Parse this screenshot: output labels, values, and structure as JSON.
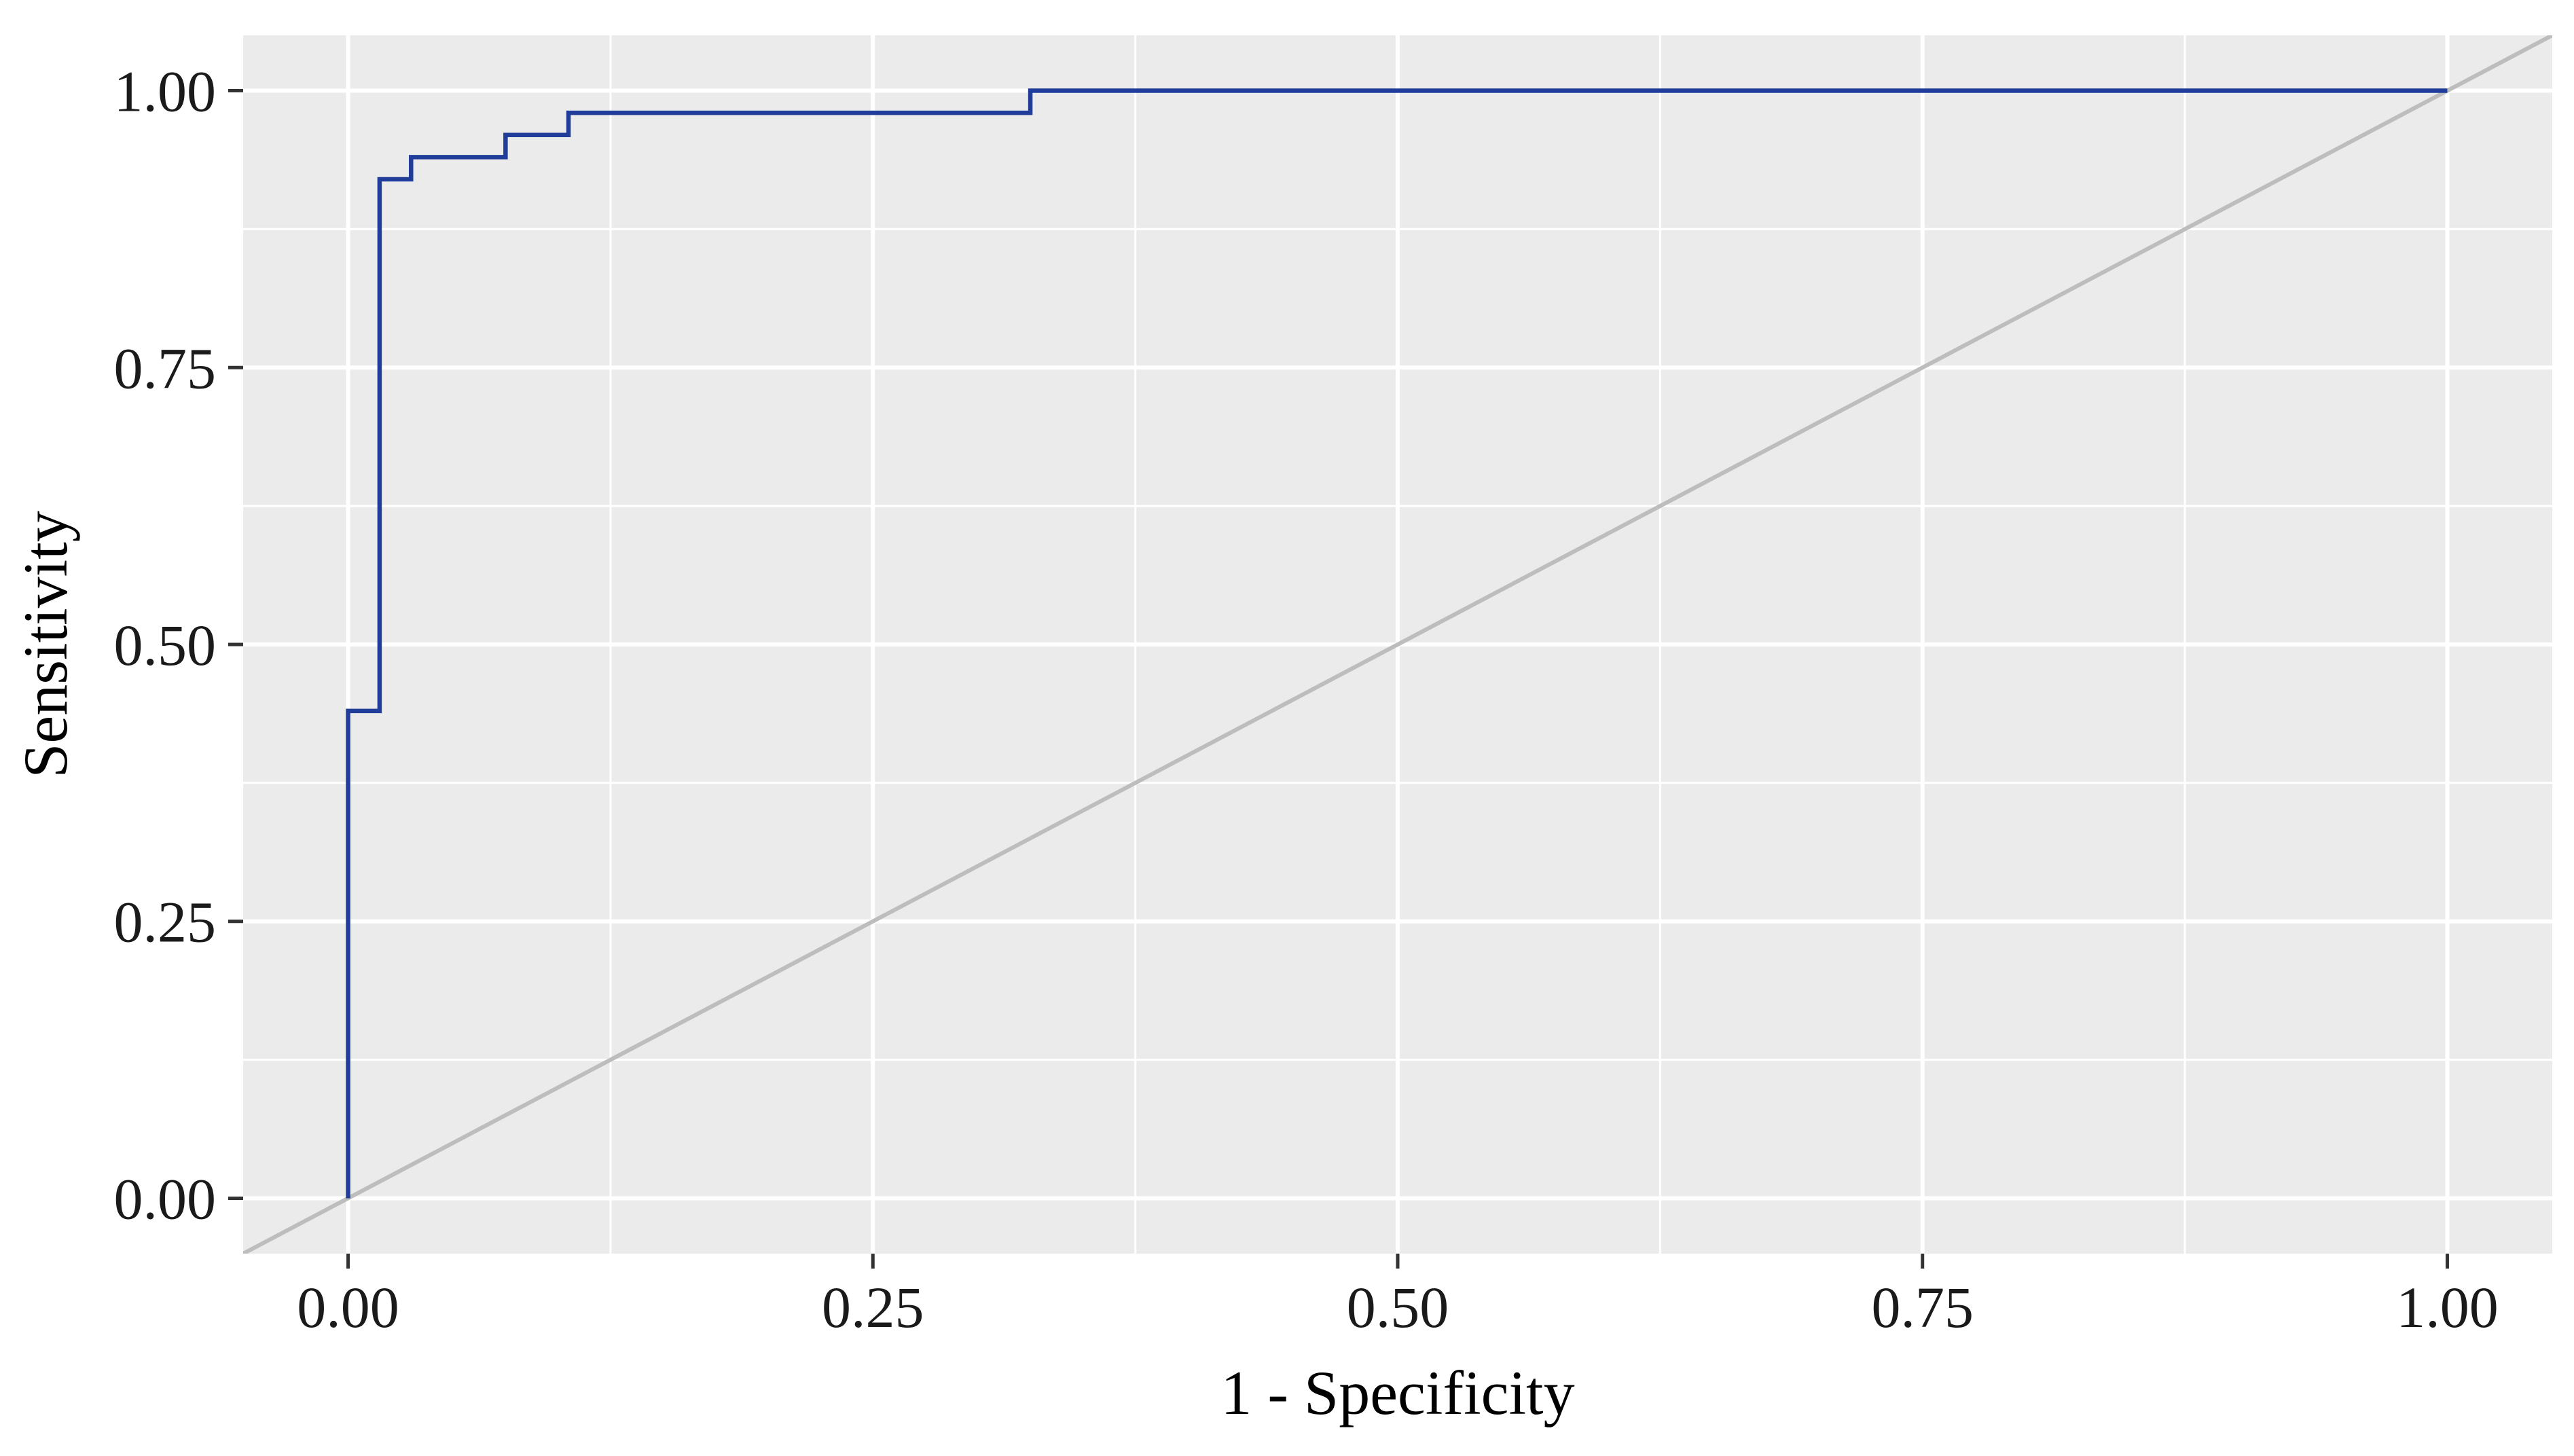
{
  "chart_data": {
    "type": "line",
    "title": "",
    "xlabel": "1 - Specificity",
    "ylabel": "Sensitivity",
    "xlim": [
      -0.05,
      1.05
    ],
    "ylim": [
      -0.05,
      1.05
    ],
    "x_ticks": [
      0.0,
      0.25,
      0.5,
      0.75,
      1.0
    ],
    "y_ticks": [
      0.0,
      0.25,
      0.5,
      0.75,
      1.0
    ],
    "x_tick_labels": [
      "0.00",
      "0.25",
      "0.50",
      "0.75",
      "1.00"
    ],
    "y_tick_labels": [
      "0.00",
      "0.25",
      "0.50",
      "0.75",
      "1.00"
    ],
    "grid": true,
    "legend": "none",
    "series": [
      {
        "kind": "step",
        "color": "#1f3d99",
        "x": [
          0.0,
          0.0,
          0.015,
          0.015,
          0.03,
          0.03,
          0.075,
          0.075,
          0.105,
          0.105,
          0.325,
          0.325,
          1.0
        ],
        "y": [
          0.0,
          0.44,
          0.44,
          0.92,
          0.92,
          0.94,
          0.94,
          0.96,
          0.96,
          0.98,
          0.98,
          1.0,
          1.0
        ]
      },
      {
        "kind": "reference",
        "color": "#bdbdbd",
        "x": [
          -0.05,
          1.05
        ],
        "y": [
          -0.05,
          1.05
        ]
      }
    ],
    "colors": {
      "panel": "#ebebeb",
      "grid": "#ffffff",
      "roc": "#1f3d99",
      "diagonal": "#bdbdbd"
    }
  }
}
